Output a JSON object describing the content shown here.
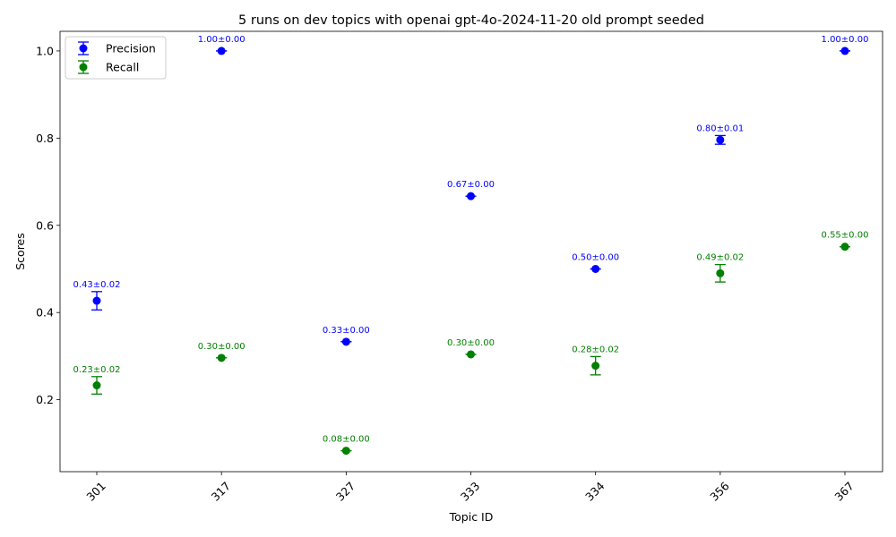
{
  "chart_data": {
    "type": "scatter",
    "title": "5 runs on dev topics with openai gpt-4o-2024-11-20 old prompt seeded",
    "xlabel": "Topic ID",
    "ylabel": "Scores",
    "categories": [
      "301",
      "317",
      "327",
      "333",
      "334",
      "356",
      "367"
    ],
    "ylim": [
      0.035,
      1.045
    ],
    "yticks": [
      0.2,
      0.4,
      0.6,
      0.8,
      1.0
    ],
    "ytick_labels": [
      "0.2",
      "0.4",
      "0.6",
      "0.8",
      "1.0"
    ],
    "grid": false,
    "legend_position": "top-left",
    "series": [
      {
        "name": "Precision",
        "color": "#0000ff",
        "values": [
          0.427,
          1.0,
          0.333,
          0.667,
          0.5,
          0.796,
          1.0
        ],
        "errors": [
          0.021,
          0.0,
          0.0,
          0.0,
          0.0,
          0.01,
          0.0
        ],
        "labels": [
          "0.43±0.02",
          "1.00±0.00",
          "0.33±0.00",
          "0.67±0.00",
          "0.50±0.00",
          "0.80±0.01",
          "1.00±0.00"
        ]
      },
      {
        "name": "Recall",
        "color": "#008000",
        "values": [
          0.233,
          0.296,
          0.083,
          0.304,
          0.278,
          0.49,
          0.551
        ],
        "errors": [
          0.02,
          0.0,
          0.0,
          0.0,
          0.021,
          0.02,
          0.0
        ],
        "labels": [
          "0.23±0.02",
          "0.30±0.00",
          "0.08±0.00",
          "0.30±0.00",
          "0.28±0.02",
          "0.49±0.02",
          "0.55±0.00"
        ]
      }
    ]
  }
}
